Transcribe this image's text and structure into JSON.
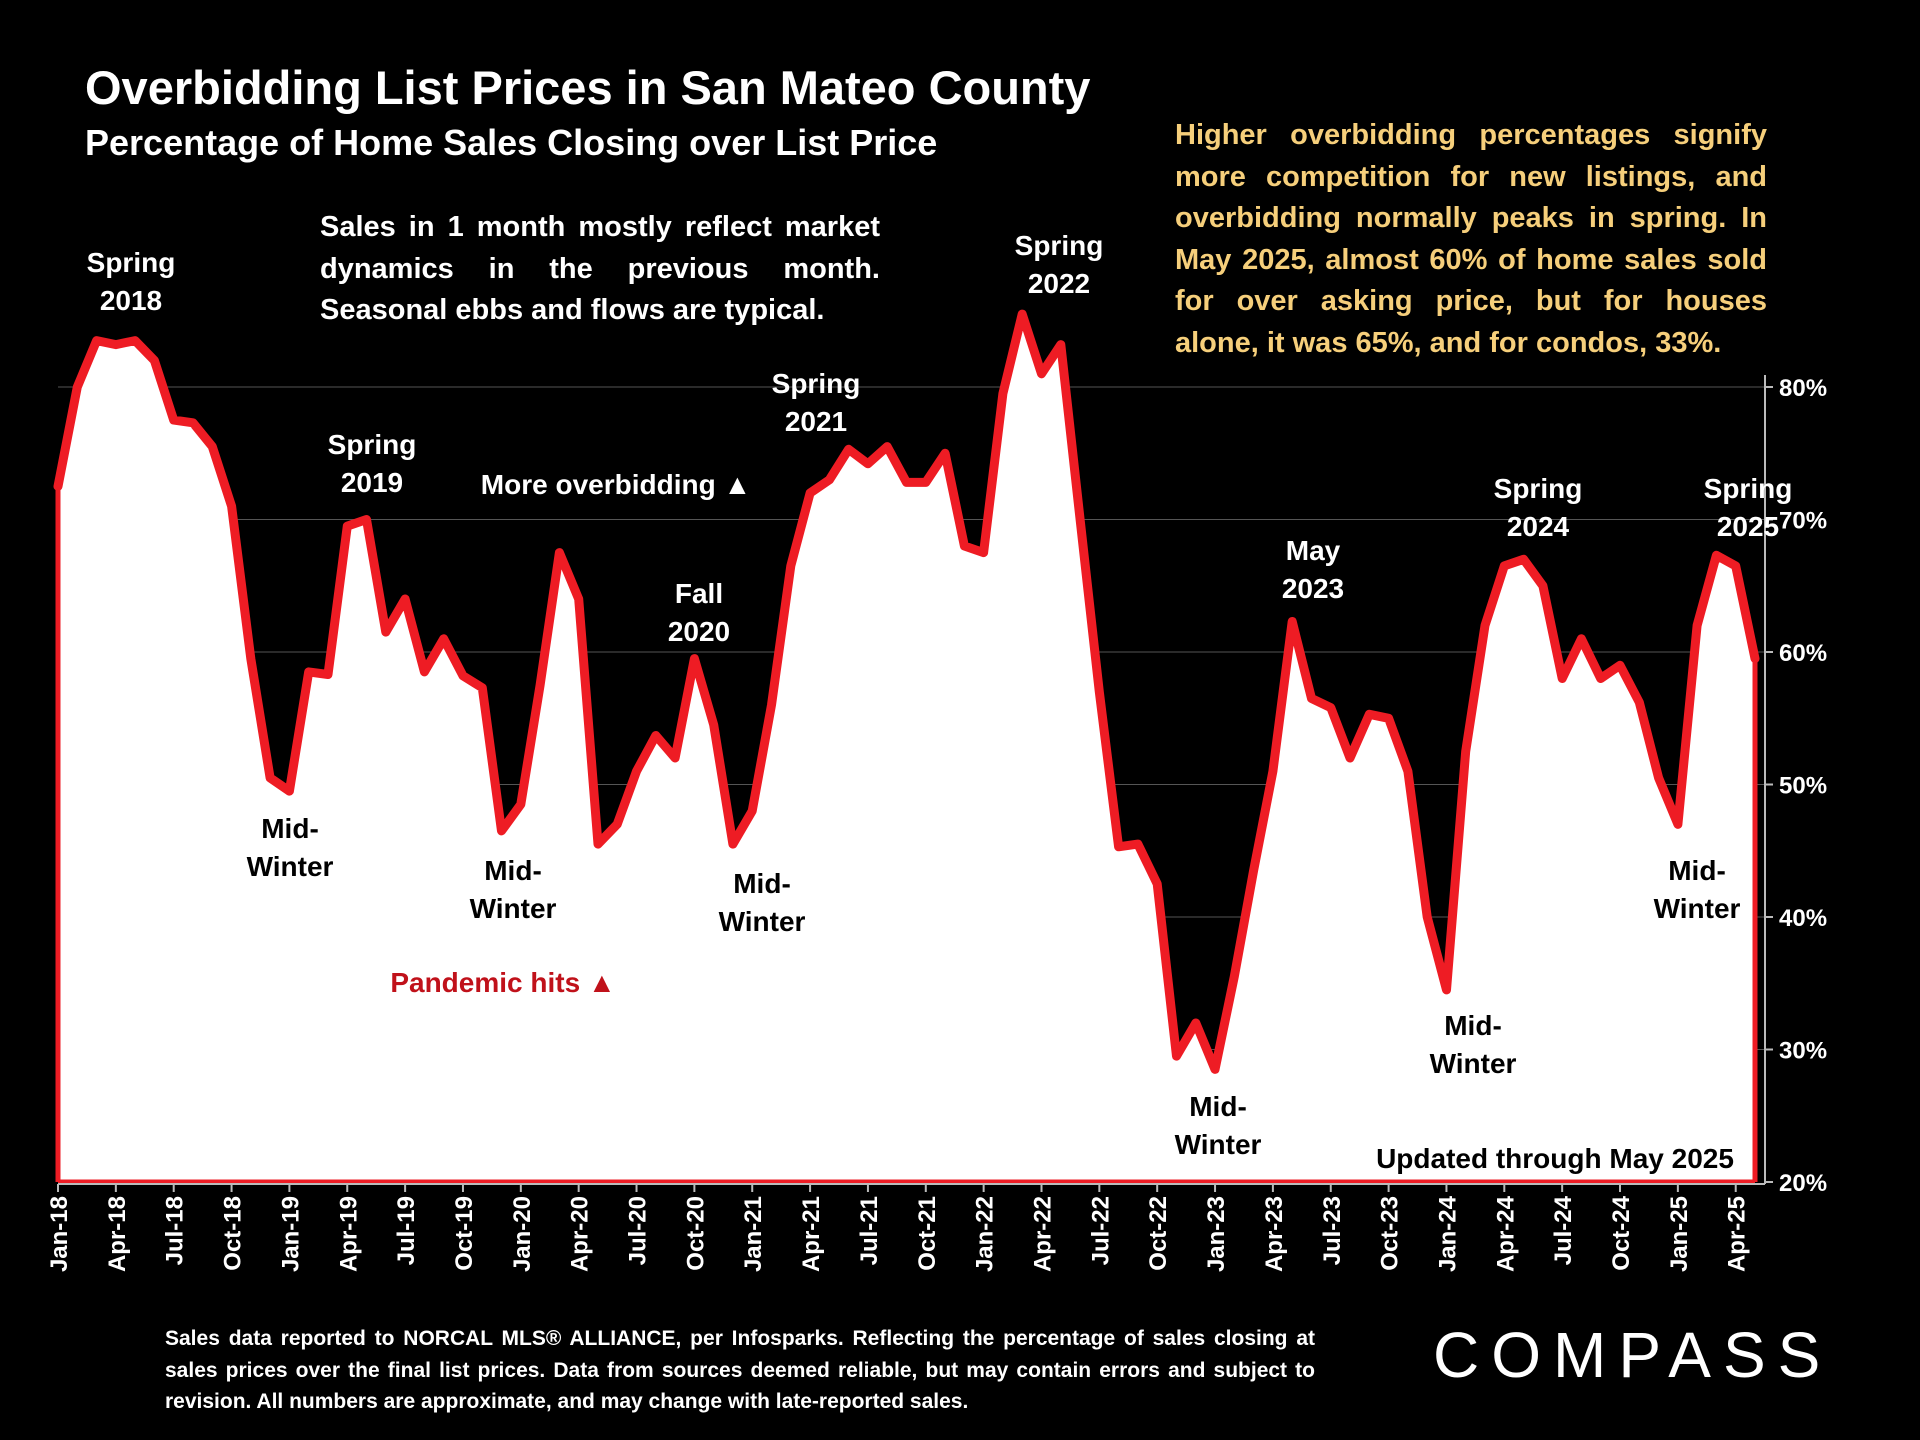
{
  "header": {
    "title": "Overbidding List Prices in San Mateo County",
    "subtitle": "Percentage of Home Sales Closing over List Price"
  },
  "notes": {
    "right": "Higher overbidding percentages signify more competition for new listings, and overbidding normally peaks in spring. In May 2025, almost 60% of home sales sold for over asking price, but for houses alone, it was 65%, and for condos, 33%.",
    "left": "Sales in 1 month mostly reflect market dynamics in the previous month. Seasonal ebbs and flows are typical."
  },
  "footer": {
    "source": "Sales data reported to NORCAL MLS® ALLIANCE, per Infosparks. Reflecting the percentage of sales closing at sales prices over the final list prices. Data from sources deemed reliable, but may contain errors and subject to revision. All numbers are approximate, and may change with late-reported sales.",
    "logo": "COMPASS"
  },
  "colors": {
    "line": "#ee1c24",
    "area": "#ffffff",
    "background": "#000000",
    "note_right": "#f6cf7b",
    "pandemic": "#c0111a"
  },
  "chart_data": {
    "type": "area",
    "y_axis_position": "right",
    "ylim": [
      20,
      80
    ],
    "y_ticks": [
      "20%",
      "30%",
      "40%",
      "50%",
      "60%",
      "70%",
      "80%"
    ],
    "y_tick_values": [
      20,
      30,
      40,
      50,
      60,
      70,
      80
    ],
    "grid": true,
    "x_tick_labels": [
      "Jan-18",
      "Apr-18",
      "Jul-18",
      "Oct-18",
      "Jan-19",
      "Apr-19",
      "Jul-19",
      "Oct-19",
      "Jan-20",
      "Apr-20",
      "Jul-20",
      "Oct-20",
      "Jan-21",
      "Apr-21",
      "Jul-21",
      "Oct-21",
      "Jan-22",
      "Apr-22",
      "Jul-22",
      "Oct-22",
      "Jan-23",
      "Apr-23",
      "Jul-23",
      "Oct-23",
      "Jan-24",
      "Apr-24",
      "Jul-24",
      "Oct-24",
      "Jan-25",
      "Apr-25"
    ],
    "series": [
      {
        "start": "Jan-18",
        "end": "May-25",
        "values": [
          72.5,
          80,
          83.5,
          83.2,
          83.5,
          82,
          77.5,
          77.3,
          75.5,
          71,
          59.5,
          50.5,
          49.5,
          58.5,
          58.3,
          69.5,
          70,
          61.5,
          64,
          58.5,
          61,
          58.2,
          57.3,
          46.5,
          48.5,
          57.5,
          67.5,
          64,
          45.5,
          47,
          51,
          53.7,
          52,
          59.5,
          54.5,
          45.5,
          48,
          56,
          66.5,
          72,
          73,
          75.3,
          74.2,
          75.5,
          72.8,
          72.8,
          75,
          68,
          67.5,
          79.5,
          85.5,
          81,
          83.2,
          70,
          57,
          45.3,
          45.5,
          42.5,
          29.5,
          32,
          28.5,
          35.5,
          43.5,
          51,
          62.3,
          56.5,
          55.8,
          52,
          55.3,
          55,
          51,
          40,
          34.5,
          52.5,
          62,
          66.5,
          67,
          65,
          58,
          61,
          58,
          59,
          56.2,
          50.5,
          47,
          62,
          67.3,
          66.5,
          59.5
        ]
      }
    ],
    "annotations": [
      {
        "text": [
          "Spring",
          "2018"
        ],
        "color": "#ffffff"
      },
      {
        "text": [
          "Mid-",
          "Winter"
        ],
        "color": "#000000"
      },
      {
        "text": [
          "Spring",
          "2019"
        ],
        "color": "#ffffff"
      },
      {
        "text": [
          "Mid-",
          "Winter"
        ],
        "color": "#000000"
      },
      {
        "text": [
          "More overbidding ▲"
        ],
        "color": "#ffffff"
      },
      {
        "text": [
          "Pandemic hits ▲"
        ],
        "color": "#c0111a"
      },
      {
        "text": [
          "Fall",
          "2020"
        ],
        "color": "#ffffff"
      },
      {
        "text": [
          "Mid-",
          "Winter"
        ],
        "color": "#000000"
      },
      {
        "text": [
          "Spring",
          "2021"
        ],
        "color": "#ffffff"
      },
      {
        "text": [
          "Mid-",
          "Winter"
        ],
        "color": "#ffffff"
      },
      {
        "text": [
          "Spring",
          "2022"
        ],
        "color": "#ffffff"
      },
      {
        "text": [
          "Mid-",
          "Winter"
        ],
        "color": "#000000"
      },
      {
        "text": [
          "May",
          "2023"
        ],
        "color": "#ffffff"
      },
      {
        "text": [
          "Mid-",
          "Winter"
        ],
        "color": "#000000"
      },
      {
        "text": [
          "Spring",
          "2024"
        ],
        "color": "#ffffff"
      },
      {
        "text": [
          "Mid-",
          "Winter"
        ],
        "color": "#000000"
      },
      {
        "text": [
          "Spring",
          "2025"
        ],
        "color": "#ffffff"
      },
      {
        "text": [
          "Updated through May 2025"
        ],
        "color": "#000000"
      }
    ]
  }
}
